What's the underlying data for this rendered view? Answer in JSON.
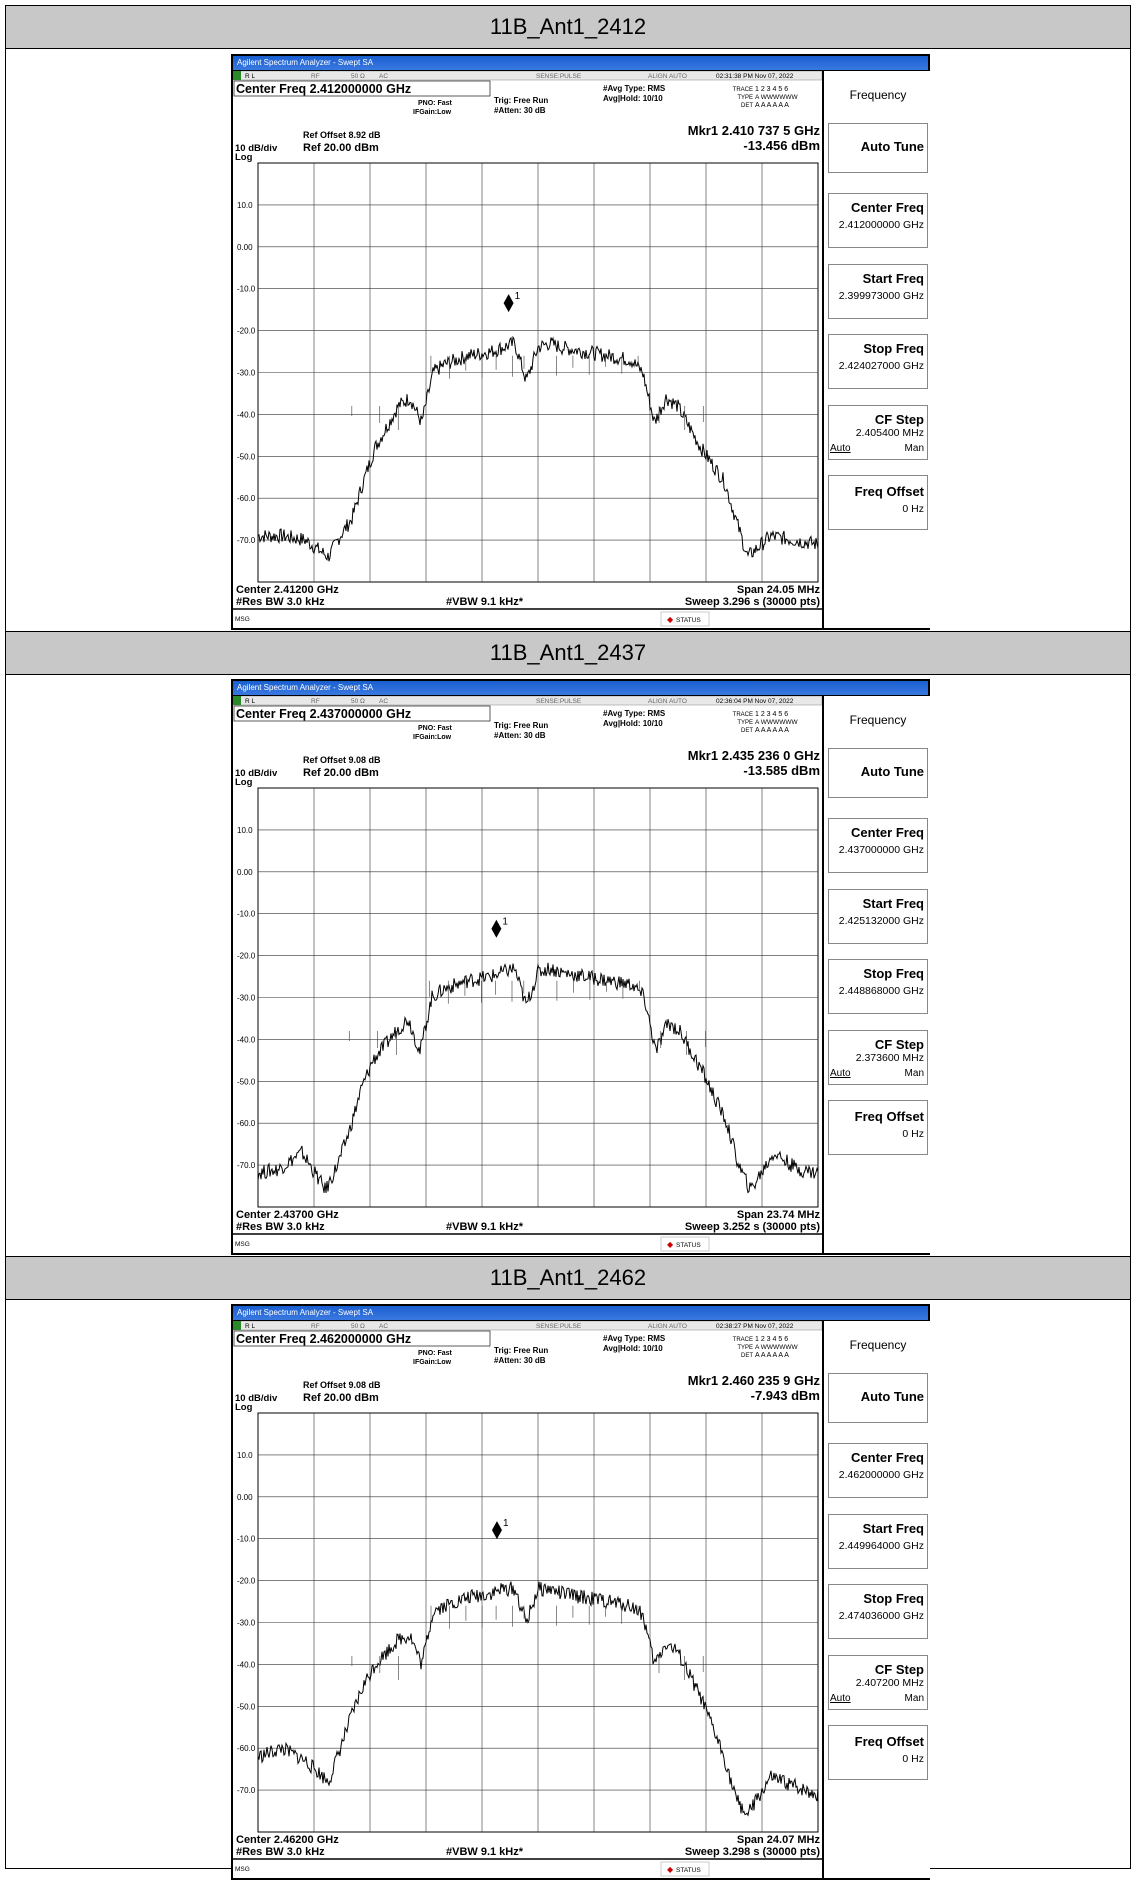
{
  "analyzers": [
    {
      "header": "11B_Ant1_2412",
      "window_title": "Agilent Spectrum Analyzer - Swept SA",
      "status_bar": {
        "rl": "R L",
        "rf": "RF",
        "ohm": "50 Ω",
        "ac": "AC",
        "sense": "SENSE:PULSE",
        "align": "ALIGN AUTO",
        "time": "02:31:38 PM Nov 07, 2022"
      },
      "center_freq_label": "Center Freq 2.412000000 GHz",
      "pno": "PNO: Fast",
      "ifgain": "IFGain:Low",
      "trig": "Trig: Free Run",
      "atten": "#Atten: 30 dB",
      "avg_type": "#Avg Type: RMS",
      "avg_hold": "Avg|Hold: 10/10",
      "trace_lbl": "TRACE",
      "trace_vals": "1 2 3 4 5 6",
      "type_lbl": "TYPE",
      "type_vals": "A WWWWWW",
      "det_lbl": "DET",
      "det_vals": "A A A A A A",
      "ref_offset": "Ref Offset 8.92 dB",
      "scale": "10 dB/div",
      "ref_level": "Ref 20.00 dBm",
      "log": "Log",
      "marker_freq": "Mkr1 2.410 737 5 GHz",
      "marker_amp": "-13.456 dBm",
      "marker_label": "1",
      "center_bottom": "Center 2.41200 GHz",
      "span": "Span 24.05 MHz",
      "rbw": "#Res BW 3.0 kHz",
      "vbw": "#VBW 9.1 kHz*",
      "sweep": "Sweep  3.296 s (30000 pts)",
      "msg": "MSG",
      "status": "STATUS",
      "softkeys": {
        "title": "Frequency",
        "auto_tune": "Auto Tune",
        "center_freq": "Center Freq",
        "center_freq_val": "2.412000000 GHz",
        "start_freq": "Start Freq",
        "start_freq_val": "2.399973000 GHz",
        "stop_freq": "Stop Freq",
        "stop_freq_val": "2.424027000 GHz",
        "cf_step": "CF Step",
        "cf_step_val": "2.405400 MHz",
        "auto": "Auto",
        "man": "Man",
        "freq_offset": "Freq Offset",
        "freq_offset_val": "0 Hz"
      }
    },
    {
      "header": "11B_Ant1_2437",
      "window_title": "Agilent Spectrum Analyzer - Swept SA",
      "status_bar": {
        "rl": "R L",
        "rf": "RF",
        "ohm": "50 Ω",
        "ac": "AC",
        "sense": "SENSE:PULSE",
        "align": "ALIGN AUTO",
        "time": "02:36:04 PM Nov 07, 2022"
      },
      "center_freq_label": "Center Freq 2.437000000 GHz",
      "pno": "PNO: Fast",
      "ifgain": "IFGain:Low",
      "trig": "Trig: Free Run",
      "atten": "#Atten: 30 dB",
      "avg_type": "#Avg Type: RMS",
      "avg_hold": "Avg|Hold: 10/10",
      "trace_lbl": "TRACE",
      "trace_vals": "1 2 3 4 5 6",
      "type_lbl": "TYPE",
      "type_vals": "A WWWWWW",
      "det_lbl": "DET",
      "det_vals": "A A A A A A",
      "ref_offset": "Ref Offset 9.08 dB",
      "scale": "10 dB/div",
      "ref_level": "Ref 20.00 dBm",
      "log": "Log",
      "marker_freq": "Mkr1 2.435 236 0 GHz",
      "marker_amp": "-13.585 dBm",
      "marker_label": "1",
      "center_bottom": "Center 2.43700 GHz",
      "span": "Span 23.74 MHz",
      "rbw": "#Res BW 3.0 kHz",
      "vbw": "#VBW 9.1 kHz*",
      "sweep": "Sweep  3.252 s (30000 pts)",
      "msg": "MSG",
      "status": "STATUS",
      "softkeys": {
        "title": "Frequency",
        "auto_tune": "Auto Tune",
        "center_freq": "Center Freq",
        "center_freq_val": "2.437000000 GHz",
        "start_freq": "Start Freq",
        "start_freq_val": "2.425132000 GHz",
        "stop_freq": "Stop Freq",
        "stop_freq_val": "2.448868000 GHz",
        "cf_step": "CF Step",
        "cf_step_val": "2.373600 MHz",
        "auto": "Auto",
        "man": "Man",
        "freq_offset": "Freq Offset",
        "freq_offset_val": "0 Hz"
      }
    },
    {
      "header": "11B_Ant1_2462",
      "window_title": "Agilent Spectrum Analyzer - Swept SA",
      "status_bar": {
        "rl": "R L",
        "rf": "RF",
        "ohm": "50 Ω",
        "ac": "AC",
        "sense": "SENSE:PULSE",
        "align": "ALIGN AUTO",
        "time": "02:38:27 PM Nov 07, 2022"
      },
      "center_freq_label": "Center Freq 2.462000000 GHz",
      "pno": "PNO: Fast",
      "ifgain": "IFGain:Low",
      "trig": "Trig: Free Run",
      "atten": "#Atten: 30 dB",
      "avg_type": "#Avg Type: RMS",
      "avg_hold": "Avg|Hold: 10/10",
      "trace_lbl": "TRACE",
      "trace_vals": "1 2 3 4 5 6",
      "type_lbl": "TYPE",
      "type_vals": "A WWWWWW",
      "det_lbl": "DET",
      "det_vals": "A A A A A A",
      "ref_offset": "Ref Offset 9.08 dB",
      "scale": "10 dB/div",
      "ref_level": "Ref 20.00 dBm",
      "log": "Log",
      "marker_freq": "Mkr1 2.460 235 9 GHz",
      "marker_amp": "-7.943 dBm",
      "marker_label": "1",
      "center_bottom": "Center 2.46200 GHz",
      "span": "Span 24.07 MHz",
      "rbw": "#Res BW 3.0 kHz",
      "vbw": "#VBW 9.1 kHz*",
      "sweep": "Sweep  3.298 s (30000 pts)",
      "msg": "MSG",
      "status": "STATUS",
      "softkeys": {
        "title": "Frequency",
        "auto_tune": "Auto Tune",
        "center_freq": "Center Freq",
        "center_freq_val": "2.462000000 GHz",
        "start_freq": "Start Freq",
        "start_freq_val": "2.449964000 GHz",
        "stop_freq": "Stop Freq",
        "stop_freq_val": "2.474036000 GHz",
        "cf_step": "CF Step",
        "cf_step_val": "2.407200 MHz",
        "auto": "Auto",
        "man": "Man",
        "freq_offset": "Freq Offset",
        "freq_offset_val": "0 Hz"
      }
    }
  ],
  "chart_data": [
    {
      "type": "line",
      "title": "11B_Ant1_2412",
      "ylabel": "10 dB/div",
      "ylim": [
        -80,
        20
      ],
      "y_ticks": [
        "10.0",
        "0.00",
        "-10.0",
        "-20.0",
        "-30.0",
        "-40.0",
        "-50.0",
        "-60.0",
        "-70.0"
      ],
      "y_tick_values": [
        10,
        0,
        -10,
        -20,
        -30,
        -40,
        -50,
        -60,
        -70
      ],
      "xlim_ghz": [
        2.399973,
        2.424027
      ],
      "marker": {
        "x_ghz": 2.4107375,
        "y_dbm": -13.456
      },
      "series": [
        {
          "x_offset_mhz": [
            -12.0,
            -11.0,
            -10.0,
            -9.0,
            -8.5,
            -8.0,
            -7.5,
            -7.0,
            -6.0,
            -5.5,
            -5.0,
            -4.5,
            -4.0,
            -3.0,
            -2.0,
            -1.5,
            -1.0,
            -0.5,
            0.0,
            0.5,
            1.0,
            2.0,
            3.0,
            4.0,
            4.5,
            5.0,
            5.5,
            6.0,
            7.0,
            8.0,
            8.5,
            9.0,
            10.0,
            11.0,
            12.0
          ],
          "y": [
            -69,
            -69,
            -70,
            -74,
            -69,
            -65,
            -56,
            -48,
            -38,
            -36,
            -42,
            -30,
            -28,
            -26,
            -25,
            -24,
            -23,
            -32,
            -24,
            -23,
            -24,
            -25,
            -26,
            -27,
            -30,
            -42,
            -36,
            -38,
            -48,
            -56,
            -65,
            -74,
            -69,
            -70,
            -71
          ]
        }
      ]
    },
    {
      "type": "line",
      "title": "11B_Ant1_2437",
      "ylabel": "10 dB/div",
      "ylim": [
        -80,
        20
      ],
      "y_ticks": [
        "10.0",
        "0.00",
        "-10.0",
        "-20.0",
        "-30.0",
        "-40.0",
        "-50.0",
        "-60.0",
        "-70.0"
      ],
      "y_tick_values": [
        10,
        0,
        -10,
        -20,
        -30,
        -40,
        -50,
        -60,
        -70
      ],
      "xlim_ghz": [
        2.425132,
        2.448868
      ],
      "marker": {
        "x_ghz": 2.435236,
        "y_dbm": -13.585
      },
      "series": [
        {
          "x_offset_mhz": [
            -12.0,
            -11.0,
            -10.0,
            -9.0,
            -8.5,
            -8.0,
            -7.5,
            -7.0,
            -6.0,
            -5.5,
            -5.0,
            -4.5,
            -4.0,
            -3.0,
            -2.0,
            -1.5,
            -1.0,
            -0.5,
            0.0,
            0.5,
            1.0,
            2.0,
            3.0,
            4.0,
            4.5,
            5.0,
            5.5,
            6.0,
            7.0,
            8.0,
            8.5,
            9.0,
            10.0,
            11.0,
            12.0
          ],
          "y": [
            -72,
            -71,
            -67,
            -76,
            -70,
            -62,
            -52,
            -45,
            -38,
            -35,
            -43,
            -30,
            -28,
            -26,
            -25,
            -24,
            -23,
            -32,
            -24,
            -23,
            -24,
            -25,
            -26,
            -27,
            -30,
            -43,
            -36,
            -38,
            -48,
            -60,
            -70,
            -76,
            -67,
            -71,
            -72
          ]
        }
      ]
    },
    {
      "type": "line",
      "title": "11B_Ant1_2462",
      "ylabel": "10 dB/div",
      "ylim": [
        -80,
        20
      ],
      "y_ticks": [
        "10.0",
        "0.00",
        "-10.0",
        "-20.0",
        "-30.0",
        "-40.0",
        "-50.0",
        "-60.0",
        "-70.0"
      ],
      "y_tick_values": [
        10,
        0,
        -10,
        -20,
        -30,
        -40,
        -50,
        -60,
        -70
      ],
      "xlim_ghz": [
        2.449964,
        2.474036
      ],
      "marker": {
        "x_ghz": 2.4602359,
        "y_dbm": -7.943
      },
      "series": [
        {
          "x_offset_mhz": [
            -12.0,
            -11.0,
            -10.0,
            -9.0,
            -8.5,
            -8.0,
            -7.5,
            -7.0,
            -6.0,
            -5.5,
            -5.0,
            -4.5,
            -4.0,
            -3.0,
            -2.0,
            -1.5,
            -1.0,
            -0.5,
            0.0,
            0.5,
            1.0,
            2.0,
            3.0,
            4.0,
            4.5,
            5.0,
            5.5,
            6.0,
            7.0,
            8.0,
            8.5,
            9.0,
            10.0,
            11.0,
            12.0
          ],
          "y": [
            -62,
            -60,
            -63,
            -68,
            -60,
            -52,
            -45,
            -40,
            -34,
            -33,
            -40,
            -27,
            -26,
            -24,
            -23,
            -22,
            -22,
            -30,
            -22,
            -22,
            -23,
            -24,
            -25,
            -26,
            -28,
            -40,
            -35,
            -37,
            -48,
            -62,
            -72,
            -76,
            -67,
            -69,
            -71
          ]
        }
      ]
    }
  ]
}
